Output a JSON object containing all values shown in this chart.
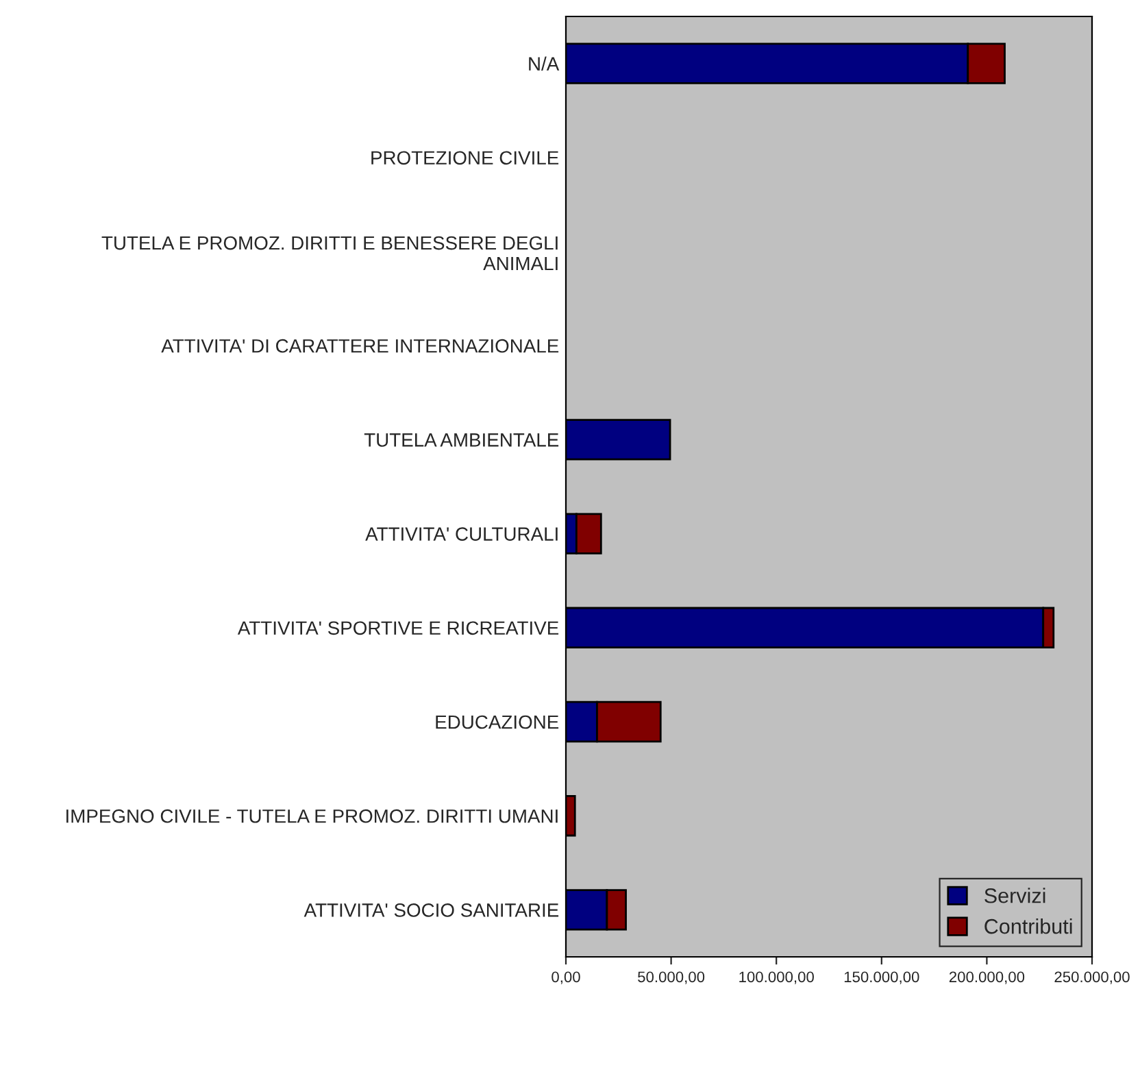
{
  "chart_data": {
    "type": "bar",
    "orientation": "horizontal",
    "stacked": true,
    "categories": [
      "N/A",
      "PROTEZIONE CIVILE",
      "TUTELA E PROMOZ. DIRITTI E BENESSERE DEGLI\nANIMALI",
      "ATTIVITA' DI CARATTERE INTERNAZIONALE",
      "TUTELA AMBIENTALE",
      "ATTIVITA' CULTURALI",
      "ATTIVITA' SPORTIVE E RICREATIVE",
      "EDUCAZIONE",
      "IMPEGNO CIVILE - TUTELA E PROMOZ. DIRITTI UMANI",
      "ATTIVITA' SOCIO SANITARIE"
    ],
    "series": [
      {
        "name": "Servizi",
        "color": "#000080",
        "values": [
          191000,
          null,
          null,
          null,
          49500,
          5000,
          226800,
          14800,
          null,
          19500
        ]
      },
      {
        "name": "Contributi",
        "color": "#800000",
        "values": [
          17500,
          null,
          null,
          null,
          null,
          11700,
          4900,
          30200,
          4300,
          9000
        ]
      }
    ],
    "xlim": [
      0,
      250000
    ],
    "xticks": [
      {
        "value": 0,
        "label": "0,00"
      },
      {
        "value": 50000,
        "label": "50.000,00"
      },
      {
        "value": 100000,
        "label": "100.000,00"
      },
      {
        "value": 150000,
        "label": "150.000,00"
      },
      {
        "value": 200000,
        "label": "200.000,00"
      },
      {
        "value": 250000,
        "label": "250.000,00"
      }
    ],
    "grid": false,
    "legend": "bottom right"
  }
}
